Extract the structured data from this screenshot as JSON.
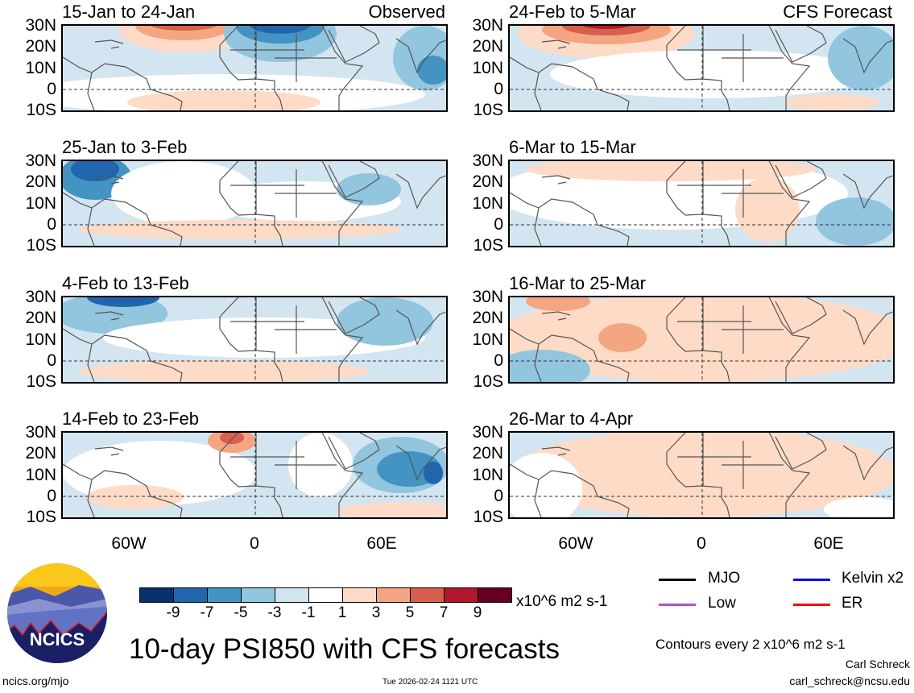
{
  "panels": [
    {
      "title": "15-Jan to 24-Jan",
      "tag": "Observed"
    },
    {
      "title": "25-Jan to 3-Feb",
      "tag": ""
    },
    {
      "title": "4-Feb to 13-Feb",
      "tag": ""
    },
    {
      "title": "14-Feb to 23-Feb",
      "tag": ""
    },
    {
      "title": "24-Feb to 5-Mar",
      "tag": "CFS Forecast"
    },
    {
      "title": "6-Mar to 15-Mar",
      "tag": ""
    },
    {
      "title": "16-Mar to 25-Mar",
      "tag": ""
    },
    {
      "title": "26-Mar to 4-Apr",
      "tag": ""
    }
  ],
  "lat_labels": [
    "30N",
    "20N",
    "10N",
    "0",
    "10S"
  ],
  "lon_labels": [
    "60W",
    "0",
    "60E"
  ],
  "colorbar": {
    "colors": [
      "#08306b",
      "#2166ac",
      "#4393c3",
      "#92c5de",
      "#d1e5f0",
      "#ffffff",
      "#fddbc7",
      "#f4a582",
      "#d6604d",
      "#b2182b",
      "#67001f"
    ],
    "labels": [
      "-9",
      "-7",
      "-5",
      "-3",
      "-1",
      "1",
      "3",
      "5",
      "7",
      "9"
    ],
    "units": "x10^6 m2 s-1"
  },
  "legend": [
    {
      "label": "MJO",
      "color": "#000000"
    },
    {
      "label": "Kelvin x2",
      "color": "#0000ff"
    },
    {
      "label": "Low",
      "color": "#b050d0"
    },
    {
      "label": "ER",
      "color": "#ff0000"
    }
  ],
  "title": "10-day PSI850 with CFS forecasts",
  "contours_note": "Contours every 2 x10^6 m2 s-1",
  "author": "Carl Schreck",
  "email": "carl_schreck@ncsu.edu",
  "site": "ncics.org/mjo",
  "timestamp": "Tue 2026-02-24 1121 UTC",
  "logo_text": "NCICS"
}
